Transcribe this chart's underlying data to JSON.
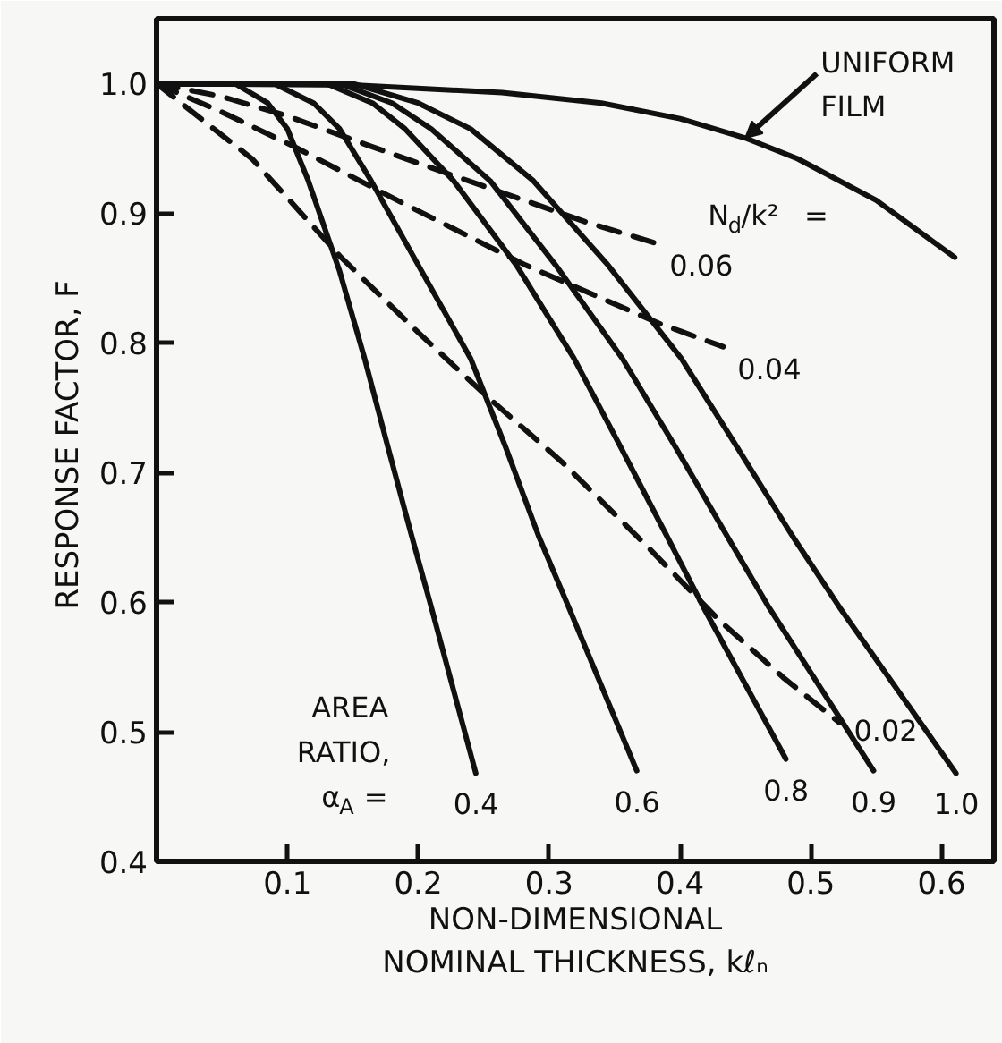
{
  "chart_data": {
    "type": "line",
    "xlabel": "NON-DIMENSIONAL\nNOMINAL THICKNESS, kℓₙ",
    "ylabel": "RESPONSE FACTOR,  F",
    "xlim": [
      0,
      0.64
    ],
    "ylim": [
      0.4,
      1.05
    ],
    "xticks": [
      0.1,
      0.2,
      0.3,
      0.4,
      0.5,
      0.6
    ],
    "yticks": [
      0.4,
      0.5,
      0.6,
      0.7,
      0.8,
      0.9,
      {
        "value": 1,
        "label": "1.0"
      }
    ],
    "series": [
      {
        "name": "UNIFORM\nFILM",
        "color": "#111111",
        "line_style": "solid",
        "x": [
          0,
          0.15,
          0.264,
          0.34,
          0.4,
          0.45,
          0.49,
          0.55,
          0.61
        ],
        "values": [
          1,
          0.999,
          0.993,
          0.985,
          0.973,
          0.958,
          0.942,
          0.91,
          0.866
        ]
      },
      {
        "name": "0.4",
        "color": "#111111",
        "line_style": "solid",
        "x": [
          0,
          0.06,
          0.085,
          0.1,
          0.116,
          0.14,
          0.159,
          0.177,
          0.195,
          0.21,
          0.244
        ],
        "values": [
          1,
          1,
          0.985,
          0.965,
          0.925,
          0.855,
          0.788,
          0.719,
          0.651,
          0.596,
          0.468
        ]
      },
      {
        "name": "0.6",
        "color": "#111111",
        "line_style": "solid",
        "x": [
          0,
          0.09,
          0.12,
          0.14,
          0.164,
          0.2,
          0.24,
          0.267,
          0.292,
          0.315,
          0.367
        ],
        "values": [
          1,
          1,
          0.985,
          0.965,
          0.925,
          0.86,
          0.788,
          0.719,
          0.651,
          0.596,
          0.47
        ]
      },
      {
        "name": "0.8",
        "color": "#111111",
        "line_style": "solid",
        "x": [
          0,
          0.13,
          0.165,
          0.19,
          0.227,
          0.275,
          0.319,
          0.355,
          0.39,
          0.418,
          0.481
        ],
        "values": [
          1,
          1,
          0.985,
          0.965,
          0.925,
          0.86,
          0.788,
          0.719,
          0.651,
          0.596,
          0.479
        ]
      },
      {
        "name": "0.9",
        "color": "#111111",
        "line_style": "solid",
        "x": [
          0,
          0.14,
          0.18,
          0.21,
          0.255,
          0.305,
          0.356,
          0.397,
          0.436,
          0.468,
          0.548
        ],
        "values": [
          1,
          1,
          0.985,
          0.965,
          0.925,
          0.86,
          0.788,
          0.719,
          0.651,
          0.596,
          0.47
        ]
      },
      {
        "name": "1.0",
        "color": "#111111",
        "line_style": "solid",
        "x": [
          0,
          0.15,
          0.2,
          0.24,
          0.288,
          0.345,
          0.401,
          0.444,
          0.486,
          0.522,
          0.611
        ],
        "values": [
          1,
          1,
          0.985,
          0.965,
          0.925,
          0.86,
          0.788,
          0.719,
          0.651,
          0.596,
          0.468
        ]
      },
      {
        "name": "0.06",
        "color": "#111111",
        "line_style": "dashed",
        "x": [
          0,
          0.05,
          0.1,
          0.16,
          0.227,
          0.329,
          0.381
        ],
        "values": [
          1,
          0.99,
          0.975,
          0.953,
          0.929,
          0.893,
          0.877
        ]
      },
      {
        "name": "0.04",
        "color": "#111111",
        "line_style": "dashed",
        "x": [
          0,
          0.05,
          0.104,
          0.182,
          0.282,
          0.384,
          0.433
        ],
        "values": [
          1,
          0.978,
          0.952,
          0.911,
          0.86,
          0.815,
          0.797
        ]
      },
      {
        "name": "0.02",
        "color": "#111111",
        "line_style": "dashed",
        "x": [
          0,
          0.035,
          0.073,
          0.141,
          0.2,
          0.251,
          0.31,
          0.373,
          0.43,
          0.48,
          0.522
        ],
        "values": [
          1,
          0.972,
          0.942,
          0.866,
          0.808,
          0.76,
          0.708,
          0.645,
          0.586,
          0.541,
          0.507
        ]
      }
    ],
    "annotations": [
      "N$_{d}$/k² =",
      "AREA\nRATIO,\nα$_{A}$ ="
    ]
  }
}
